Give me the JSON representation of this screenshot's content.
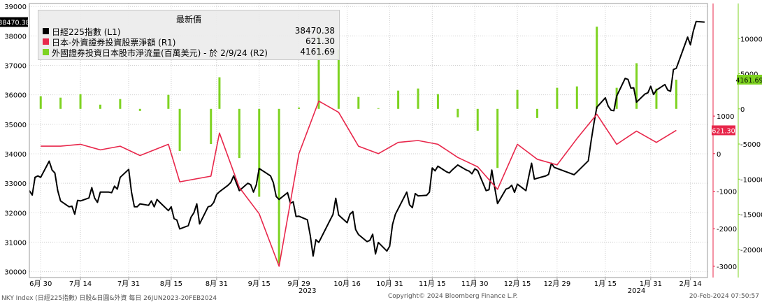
{
  "legend": {
    "title": "最新價",
    "items": [
      {
        "label": "日經225指數 (L1)",
        "value": "38470.38",
        "color": "#000000"
      },
      {
        "label": "日本-外資證券投資股票淨額 (R1)",
        "value": "621.30",
        "color": "#e8274b"
      },
      {
        "label": "外國證券投資日本股市淨流量(百萬美元) - 於 2/9/24 (R2)",
        "value": "4161.69",
        "color": "#7ed321"
      }
    ]
  },
  "footer": {
    "left": "NKY Index (日經225指數) 日股&日圓&外資  每日 26JUN2023-20FEB2024",
    "center": "Copyright© 2024 Bloomberg Finance L.P.",
    "right": "20-Feb-2024 07:50:57"
  },
  "chart_data": {
    "type": "line",
    "x_range": [
      "2023-06-26",
      "2024-02-20"
    ],
    "x_tick_labels": [
      "6月 30",
      "7月 14",
      "7月 31",
      "8月 15",
      "8月 31",
      "9月 15",
      "9月 29",
      "10月 16",
      "10月 31",
      "11月 15",
      "11月 30",
      "12月 15",
      "12月 29",
      "1月 15",
      "1月 31",
      "2月 14"
    ],
    "x_year_labels": [
      "2023",
      "2024"
    ],
    "axes": {
      "L1": {
        "range": [
          29800,
          39100
        ],
        "ticks": [
          30000,
          31000,
          32000,
          33000,
          34000,
          35000,
          36000,
          37000,
          38000,
          39000
        ],
        "side": "left"
      },
      "R1": {
        "range": [
          -3300,
          4000
        ],
        "ticks": [
          -3000,
          -2000,
          -1000,
          0,
          1000
        ],
        "side": "right-inner",
        "color": "#e8274b"
      },
      "R2": {
        "range": [
          -24000,
          15000
        ],
        "ticks": [
          -20000,
          -15000,
          -10000,
          -5000,
          0,
          5000,
          10000
        ],
        "side": "right-outer",
        "color": "#7ed321"
      }
    },
    "current_value_tags": {
      "L1": "38470.38",
      "R1": "621.30",
      "R2": "4161.69"
    },
    "grid": true,
    "legend_position": "top-left",
    "series": [
      {
        "name": "日經225指數 (L1)",
        "axis": "L1",
        "style": "line",
        "color": "#000000",
        "points": [
          [
            "2023-06-26",
            32750
          ],
          [
            "2023-06-27",
            32600
          ],
          [
            "2023-06-28",
            33200
          ],
          [
            "2023-06-29",
            33250
          ],
          [
            "2023-06-30",
            33200
          ],
          [
            "2023-07-03",
            33750
          ],
          [
            "2023-07-04",
            33450
          ],
          [
            "2023-07-05",
            33350
          ],
          [
            "2023-07-06",
            32750
          ],
          [
            "2023-07-07",
            32400
          ],
          [
            "2023-07-10",
            32200
          ],
          [
            "2023-07-11",
            32220
          ],
          [
            "2023-07-12",
            31950
          ],
          [
            "2023-07-13",
            32420
          ],
          [
            "2023-07-14",
            32400
          ],
          [
            "2023-07-17",
            32500
          ],
          [
            "2023-07-18",
            32850
          ],
          [
            "2023-07-19",
            32500
          ],
          [
            "2023-07-20",
            32350
          ],
          [
            "2023-07-21",
            32700
          ],
          [
            "2023-07-24",
            32700
          ],
          [
            "2023-07-25",
            32680
          ],
          [
            "2023-07-26",
            32900
          ],
          [
            "2023-07-27",
            32800
          ],
          [
            "2023-07-28",
            33200
          ],
          [
            "2023-07-31",
            33470
          ],
          [
            "2023-08-01",
            32700
          ],
          [
            "2023-08-02",
            32200
          ],
          [
            "2023-08-03",
            32200
          ],
          [
            "2023-08-04",
            32300
          ],
          [
            "2023-08-07",
            32250
          ],
          [
            "2023-08-08",
            32400
          ],
          [
            "2023-08-09",
            32200
          ],
          [
            "2023-08-10",
            32450
          ],
          [
            "2023-08-11",
            32350
          ],
          [
            "2023-08-14",
            32070
          ],
          [
            "2023-08-15",
            32200
          ],
          [
            "2023-08-16",
            31800
          ],
          [
            "2023-08-17",
            31750
          ],
          [
            "2023-08-18",
            31450
          ],
          [
            "2023-08-21",
            31560
          ],
          [
            "2023-08-22",
            31850
          ],
          [
            "2023-08-23",
            32000
          ],
          [
            "2023-08-24",
            32300
          ],
          [
            "2023-08-25",
            31620
          ],
          [
            "2023-08-28",
            32200
          ],
          [
            "2023-08-29",
            32230
          ],
          [
            "2023-08-30",
            32350
          ],
          [
            "2023-08-31",
            32620
          ],
          [
            "2023-09-01",
            32710
          ],
          [
            "2023-09-04",
            32930
          ],
          [
            "2023-09-05",
            33030
          ],
          [
            "2023-09-06",
            33250
          ],
          [
            "2023-09-07",
            33000
          ],
          [
            "2023-09-08",
            32750
          ],
          [
            "2023-09-11",
            33000
          ],
          [
            "2023-09-12",
            32950
          ],
          [
            "2023-09-13",
            32700
          ],
          [
            "2023-09-14",
            32950
          ],
          [
            "2023-09-15",
            33500
          ],
          [
            "2023-09-19",
            33250
          ],
          [
            "2023-09-20",
            33020
          ],
          [
            "2023-09-21",
            32550
          ],
          [
            "2023-09-22",
            32450
          ],
          [
            "2023-09-25",
            32680
          ],
          [
            "2023-09-26",
            32320
          ],
          [
            "2023-09-27",
            32370
          ],
          [
            "2023-09-28",
            31870
          ],
          [
            "2023-09-29",
            31880
          ],
          [
            "2023-10-02",
            31760
          ],
          [
            "2023-10-03",
            31230
          ],
          [
            "2023-10-04",
            30530
          ],
          [
            "2023-10-05",
            31080
          ],
          [
            "2023-10-06",
            30990
          ],
          [
            "2023-10-10",
            31750
          ],
          [
            "2023-10-11",
            31940
          ],
          [
            "2023-10-12",
            32490
          ],
          [
            "2023-10-13",
            31920
          ],
          [
            "2023-10-16",
            31660
          ],
          [
            "2023-10-17",
            31950
          ],
          [
            "2023-10-18",
            32040
          ],
          [
            "2023-10-19",
            31430
          ],
          [
            "2023-10-20",
            31260
          ],
          [
            "2023-10-23",
            31020
          ],
          [
            "2023-10-24",
            31060
          ],
          [
            "2023-10-25",
            31270
          ],
          [
            "2023-10-26",
            30600
          ],
          [
            "2023-10-27",
            30990
          ],
          [
            "2023-10-30",
            30700
          ],
          [
            "2023-10-31",
            30860
          ],
          [
            "2023-11-01",
            31600
          ],
          [
            "2023-11-02",
            31950
          ],
          [
            "2023-11-06",
            32700
          ],
          [
            "2023-11-07",
            32270
          ],
          [
            "2023-11-08",
            32170
          ],
          [
            "2023-11-09",
            32650
          ],
          [
            "2023-11-10",
            32570
          ],
          [
            "2023-11-13",
            32590
          ],
          [
            "2023-11-14",
            32700
          ],
          [
            "2023-11-15",
            33520
          ],
          [
            "2023-11-16",
            33420
          ],
          [
            "2023-11-17",
            33580
          ],
          [
            "2023-11-20",
            33390
          ],
          [
            "2023-11-21",
            33350
          ],
          [
            "2023-11-22",
            33450
          ],
          [
            "2023-11-24",
            33620
          ],
          [
            "2023-11-27",
            33450
          ],
          [
            "2023-11-28",
            33410
          ],
          [
            "2023-11-29",
            33320
          ],
          [
            "2023-11-30",
            33490
          ],
          [
            "2023-12-01",
            33430
          ],
          [
            "2023-12-04",
            32750
          ],
          [
            "2023-12-05",
            32780
          ],
          [
            "2023-12-06",
            33450
          ],
          [
            "2023-12-07",
            32860
          ],
          [
            "2023-12-08",
            32310
          ],
          [
            "2023-12-11",
            32800
          ],
          [
            "2023-12-12",
            32840
          ],
          [
            "2023-12-13",
            32930
          ],
          [
            "2023-12-14",
            32690
          ],
          [
            "2023-12-15",
            32970
          ],
          [
            "2023-12-18",
            32750
          ],
          [
            "2023-12-19",
            33220
          ],
          [
            "2023-12-20",
            33680
          ],
          [
            "2023-12-21",
            33140
          ],
          [
            "2023-12-22",
            33170
          ],
          [
            "2023-12-25",
            33250
          ],
          [
            "2023-12-26",
            33300
          ],
          [
            "2023-12-27",
            33680
          ],
          [
            "2023-12-28",
            33540
          ],
          [
            "2024-01-04",
            33290
          ],
          [
            "2024-01-05",
            33380
          ],
          [
            "2024-01-09",
            33760
          ],
          [
            "2024-01-10",
            34440
          ],
          [
            "2024-01-11",
            35050
          ],
          [
            "2024-01-12",
            35580
          ],
          [
            "2024-01-15",
            35900
          ],
          [
            "2024-01-16",
            35620
          ],
          [
            "2024-01-17",
            35480
          ],
          [
            "2024-01-18",
            35460
          ],
          [
            "2024-01-19",
            35960
          ],
          [
            "2024-01-22",
            36560
          ],
          [
            "2024-01-23",
            36520
          ],
          [
            "2024-01-24",
            36230
          ],
          [
            "2024-01-25",
            36240
          ],
          [
            "2024-01-26",
            35750
          ],
          [
            "2024-01-29",
            36030
          ],
          [
            "2024-01-30",
            36070
          ],
          [
            "2024-01-31",
            36290
          ],
          [
            "2024-02-01",
            36010
          ],
          [
            "2024-02-02",
            36160
          ],
          [
            "2024-02-05",
            36350
          ],
          [
            "2024-02-06",
            36160
          ],
          [
            "2024-02-07",
            36120
          ],
          [
            "2024-02-08",
            36860
          ],
          [
            "2024-02-09",
            36900
          ],
          [
            "2024-02-13",
            37960
          ],
          [
            "2024-02-14",
            37700
          ],
          [
            "2024-02-15",
            38160
          ],
          [
            "2024-02-16",
            38490
          ],
          [
            "2024-02-19",
            38470
          ]
        ]
      },
      {
        "name": "日本-外資證券投資股票淨額 (R1)",
        "axis": "R1",
        "style": "line",
        "color": "#e8274b",
        "points": [
          [
            "2023-06-30",
            200
          ],
          [
            "2023-07-07",
            200
          ],
          [
            "2023-07-14",
            250
          ],
          [
            "2023-07-21",
            100
          ],
          [
            "2023-07-28",
            200
          ],
          [
            "2023-08-04",
            -50
          ],
          [
            "2023-08-14",
            250
          ],
          [
            "2023-08-18",
            -750
          ],
          [
            "2023-08-29",
            -600
          ],
          [
            "2023-09-01",
            550
          ],
          [
            "2023-09-08",
            -900
          ],
          [
            "2023-09-15",
            -1600
          ],
          [
            "2023-09-22",
            -3000
          ],
          [
            "2023-09-29",
            0
          ],
          [
            "2023-10-06",
            1400
          ],
          [
            "2023-10-13",
            1100
          ],
          [
            "2023-10-20",
            200
          ],
          [
            "2023-10-27",
            0
          ],
          [
            "2023-11-03",
            300
          ],
          [
            "2023-11-10",
            350
          ],
          [
            "2023-11-17",
            250
          ],
          [
            "2023-11-24",
            -100
          ],
          [
            "2023-12-01",
            -350
          ],
          [
            "2023-12-08",
            -950
          ],
          [
            "2023-12-15",
            250
          ],
          [
            "2023-12-22",
            -150
          ],
          [
            "2023-12-29",
            -300
          ],
          [
            "2024-01-05",
            400
          ],
          [
            "2024-01-12",
            1050
          ],
          [
            "2024-01-19",
            250
          ],
          [
            "2024-01-26",
            600
          ],
          [
            "2024-02-02",
            300
          ],
          [
            "2024-02-09",
            621.3
          ]
        ]
      },
      {
        "name": "外國證券投資日本股市淨流量(百萬美元) - 於 2/9/24 (R2)",
        "axis": "R2",
        "style": "bar",
        "color": "#7ed321",
        "points": [
          [
            "2023-06-30",
            1800
          ],
          [
            "2023-07-07",
            1600
          ],
          [
            "2023-07-14",
            2100
          ],
          [
            "2023-07-21",
            600
          ],
          [
            "2023-07-28",
            1400
          ],
          [
            "2023-08-04",
            -300
          ],
          [
            "2023-08-14",
            2000
          ],
          [
            "2023-08-18",
            -6000
          ],
          [
            "2023-08-29",
            -5000
          ],
          [
            "2023-09-01",
            4500
          ],
          [
            "2023-09-08",
            -7000
          ],
          [
            "2023-09-15",
            -12500
          ],
          [
            "2023-09-22",
            -22000
          ],
          [
            "2023-09-29",
            200
          ],
          [
            "2023-10-06",
            10500
          ],
          [
            "2023-10-13",
            8500
          ],
          [
            "2023-10-20",
            1700
          ],
          [
            "2023-10-27",
            100
          ],
          [
            "2023-11-03",
            2600
          ],
          [
            "2023-11-10",
            2900
          ],
          [
            "2023-11-17",
            2100
          ],
          [
            "2023-11-24",
            -1200
          ],
          [
            "2023-12-01",
            -3100
          ],
          [
            "2023-12-08",
            -8400
          ],
          [
            "2023-12-15",
            2700
          ],
          [
            "2023-12-22",
            -1300
          ],
          [
            "2023-12-29",
            3000
          ],
          [
            "2024-01-05",
            3200
          ],
          [
            "2024-01-12",
            11700
          ],
          [
            "2024-01-19",
            3000
          ],
          [
            "2024-01-26",
            6500
          ],
          [
            "2024-02-02",
            2900
          ],
          [
            "2024-02-09",
            4161.69
          ]
        ]
      }
    ]
  }
}
